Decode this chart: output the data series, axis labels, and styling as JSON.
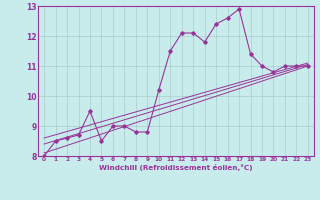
{
  "xlabel": "Windchill (Refroidissement éolien,°C)",
  "xlim": [
    -0.5,
    23.5
  ],
  "ylim": [
    8,
    13
  ],
  "xticks": [
    0,
    1,
    2,
    3,
    4,
    5,
    6,
    7,
    8,
    9,
    10,
    11,
    12,
    13,
    14,
    15,
    16,
    17,
    18,
    19,
    20,
    21,
    22,
    23
  ],
  "yticks": [
    8,
    9,
    10,
    11,
    12,
    13
  ],
  "bg_color": "#c8ecec",
  "line_color": "#993399",
  "grid_color": "#aacccc",
  "data_x": [
    0,
    1,
    2,
    3,
    4,
    5,
    6,
    7,
    8,
    9,
    10,
    11,
    12,
    13,
    14,
    15,
    16,
    17,
    18,
    19,
    20,
    21,
    22,
    23
  ],
  "data_y": [
    8.0,
    8.5,
    8.6,
    8.7,
    9.5,
    8.5,
    9.0,
    9.0,
    8.8,
    8.8,
    10.2,
    11.5,
    12.1,
    12.1,
    11.8,
    12.4,
    12.6,
    12.9,
    11.4,
    11.0,
    10.8,
    11.0,
    11.0,
    11.0
  ],
  "reg_lines": [
    [
      [
        0,
        23
      ],
      [
        8.1,
        11.0
      ]
    ],
    [
      [
        0,
        23
      ],
      [
        8.4,
        11.05
      ]
    ],
    [
      [
        0,
        23
      ],
      [
        8.6,
        11.1
      ]
    ]
  ]
}
